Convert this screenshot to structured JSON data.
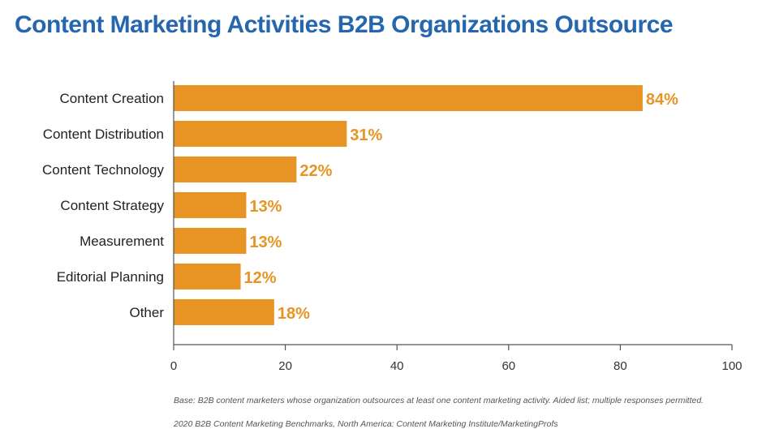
{
  "chart_data": {
    "type": "bar",
    "orientation": "horizontal",
    "title": "Content Marketing Activities B2B Organizations Outsource",
    "categories": [
      "Content Creation",
      "Content Distribution",
      "Content Technology",
      "Content Strategy",
      "Measurement",
      "Editorial Planning",
      "Other"
    ],
    "values": [
      84,
      31,
      22,
      13,
      13,
      12,
      18
    ],
    "data_labels": [
      "84%",
      "31%",
      "22%",
      "13%",
      "13%",
      "12%",
      "18%"
    ],
    "xlim": [
      0,
      100
    ],
    "xticks": [
      "0",
      "20",
      "40",
      "60",
      "80",
      "100"
    ],
    "xlabel": "",
    "ylabel": "",
    "grid": false,
    "colors": {
      "bar": "#e89424",
      "label": "#e89424",
      "title": "#2566ae"
    }
  },
  "footnotes": {
    "base": "Base: B2B content marketers whose organization outsources at least one content marketing activity. Aided list; multiple responses permitted.",
    "source": "2020 B2B Content Marketing Benchmarks, North America: Content Marketing Institute/MarketingProfs"
  }
}
